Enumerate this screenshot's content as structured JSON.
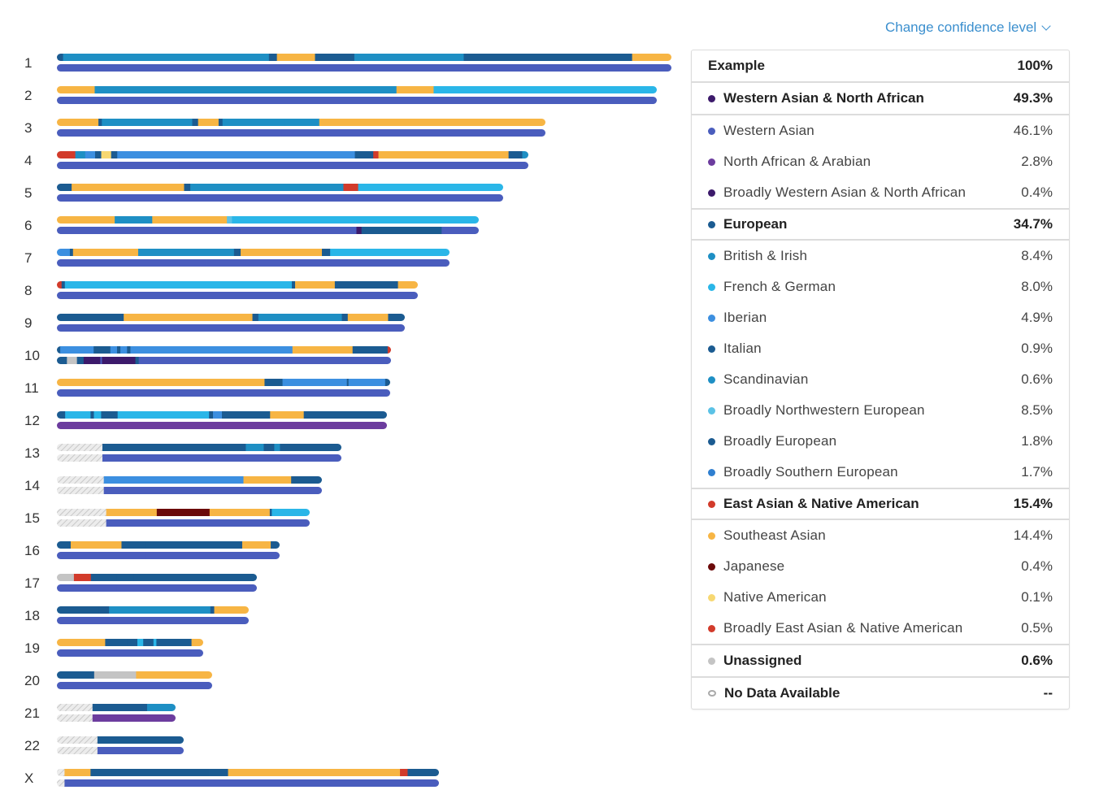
{
  "header": {
    "confidence_link": "Change confidence level"
  },
  "colors": {
    "hatch": "#dcdcdc"
  },
  "chromosomes": [
    {
      "label": "1",
      "top": [
        [
          "#1b5b91",
          0.01
        ],
        [
          "#1e8fc4",
          0.335
        ],
        [
          "#1b5b91",
          0.013
        ],
        [
          "#f7b544",
          0.062
        ],
        [
          "#1b5b91",
          0.064
        ],
        [
          "#1e8fc4",
          0.025
        ],
        [
          "#1e8fc4",
          0.153
        ],
        [
          "#1b5b91",
          0.274
        ],
        [
          "#f7b544",
          0.074
        ]
      ],
      "bottom": [
        [
          "#4a5dbd",
          0.5
        ],
        [
          "#4a5dbd",
          0.5
        ]
      ]
    },
    {
      "label": "2",
      "top": [
        [
          "#f7b544",
          0.063
        ],
        [
          "#1e8fc4",
          0.333
        ],
        [
          "#1e8fc4",
          0.17
        ],
        [
          "#f7b544",
          0.062
        ],
        [
          "#2ab6e8",
          0.372
        ]
      ],
      "bottom": [
        [
          "#4a5dbd",
          0.4
        ],
        [
          "#4a5dbd",
          0.6
        ]
      ]
    },
    {
      "label": "3",
      "top": [
        [
          "#f7b544",
          0.085
        ],
        [
          "#1b5b91",
          0.007
        ],
        [
          "#1e8fc4",
          0.185
        ],
        [
          "#1b5b91",
          0.012
        ],
        [
          "#f7b544",
          0.042
        ],
        [
          "#1b5b91",
          0.008
        ],
        [
          "#1e8fc4",
          0.128
        ],
        [
          "#1e8fc4",
          0.07
        ],
        [
          "#f7b544",
          0.463
        ]
      ],
      "bottom": [
        [
          "#4a5dbd",
          0.46
        ],
        [
          "#4a5dbd",
          0.54
        ]
      ]
    },
    {
      "label": "4",
      "top": [
        [
          "#d23b2b",
          0.039
        ],
        [
          "#1e8fc4",
          0.021
        ],
        [
          "#3c8fe0",
          0.021
        ],
        [
          "#1b5b91",
          0.013
        ],
        [
          "#f7d872",
          0.021
        ],
        [
          "#1b5b91",
          0.013
        ],
        [
          "#3c8fe0",
          0.142
        ],
        [
          "#3c8fe0",
          0.362
        ],
        [
          "#1b5b91",
          0.039
        ],
        [
          "#d23b2b",
          0.011
        ],
        [
          "#f7b544",
          0.276
        ],
        [
          "#1b5b91",
          0.029
        ],
        [
          "#1e8fc4",
          0.024
        ]
      ],
      "bottom": [
        [
          "#4a5dbd",
          0.26
        ],
        [
          "#4a5dbd",
          0.74
        ]
      ]
    },
    {
      "label": "5",
      "top": [
        [
          "#1b5b91",
          0.033
        ],
        [
          "#f7b544",
          0.252
        ],
        [
          "#1b5b91",
          0.014
        ],
        [
          "#1e8fc4",
          0.343
        ],
        [
          "#d23b2b",
          0.033
        ],
        [
          "#2ab6e8",
          0.325
        ]
      ],
      "bottom": [
        [
          "#4a5dbd",
          0.27
        ],
        [
          "#4a5dbd",
          0.73
        ]
      ]
    },
    {
      "label": "6",
      "top": [
        [
          "#f7b544",
          0.137
        ],
        [
          "#1e8fc4",
          0.089
        ],
        [
          "#f7b544",
          0.131
        ],
        [
          "#f7b544",
          0.046
        ],
        [
          "#5bc2e6",
          0.012
        ],
        [
          "#2ab6e8",
          0.585
        ]
      ],
      "bottom": [
        [
          "#4a5dbd",
          0.36
        ],
        [
          "#4a5dbd",
          0.35
        ],
        [
          "#3c1a6b",
          0.012
        ],
        [
          "#1b5b91",
          0.19
        ],
        [
          "#4a5dbd",
          0.088
        ]
      ]
    },
    {
      "label": "7",
      "top": [
        [
          "#3c8fe0",
          0.033
        ],
        [
          "#1b5b91",
          0.008
        ],
        [
          "#f7b544",
          0.166
        ],
        [
          "#1e8fc4",
          0.174
        ],
        [
          "#1e8fc4",
          0.07
        ],
        [
          "#1b5b91",
          0.017
        ],
        [
          "#f7b544",
          0.207
        ],
        [
          "#1b5b91",
          0.021
        ],
        [
          "#2ab6e8",
          0.304
        ]
      ],
      "bottom": [
        [
          "#4a5dbd",
          0.38
        ],
        [
          "#4a5dbd",
          0.62
        ]
      ]
    },
    {
      "label": "8",
      "top": [
        [
          "#d23b2b",
          0.013
        ],
        [
          "#1b5b91",
          0.009
        ],
        [
          "#2ab6e8",
          0.288
        ],
        [
          "#2ab6e8",
          0.341
        ],
        [
          "#1b5b91",
          0.009
        ],
        [
          "#f7b544",
          0.11
        ],
        [
          "#1b5b91",
          0.175
        ],
        [
          "#f7b544",
          0.055
        ]
      ],
      "bottom": [
        [
          "#4a5dbd",
          0.31
        ],
        [
          "#4a5dbd",
          0.69
        ]
      ]
    },
    {
      "label": "9",
      "top": [
        [
          "#1b5b91",
          0.192
        ],
        [
          "#f7b544",
          0.155
        ],
        [
          "#f7b544",
          0.215
        ],
        [
          "#1b5b91",
          0.017
        ],
        [
          "#1e8fc4",
          0.24
        ],
        [
          "#1b5b91",
          0.017
        ],
        [
          "#f7b544",
          0.116
        ],
        [
          "#1b5b91",
          0.048
        ]
      ],
      "bottom": [
        [
          "#4a5dbd",
          0.35
        ],
        [
          "#4a5dbd",
          0.65
        ]
      ]
    },
    {
      "label": "10",
      "top": [
        [
          "#1b5b91",
          0.01
        ],
        [
          "#3c8fe0",
          0.1
        ],
        [
          "#1b5b91",
          0.05
        ],
        [
          "#3c8fe0",
          0.02
        ],
        [
          "#1b5b91",
          0.01
        ],
        [
          "#3c8fe0",
          0.02
        ],
        [
          "#1b5b91",
          0.01
        ],
        [
          "#3c8fe0",
          0.08
        ],
        [
          "#3c8fe0",
          0.405
        ],
        [
          "#f7b544",
          0.18
        ],
        [
          "#1b5b91",
          0.105
        ],
        [
          "#d23b2b",
          0.01
        ]
      ],
      "bottom": [
        [
          "#1b5b91",
          0.03
        ],
        [
          "#c4c4c4",
          0.03
        ],
        [
          "#1b5b91",
          0.02
        ],
        [
          "#3c1a6b",
          0.05
        ],
        [
          "#4a5dbd",
          0.005
        ],
        [
          "#3c1a6b",
          0.1
        ],
        [
          "#1b5b91",
          0.01
        ],
        [
          "#4a5dbd",
          0.06
        ],
        [
          "#4a5dbd",
          0.695
        ]
      ]
    },
    {
      "label": "11",
      "top": [
        [
          "#f7b544",
          0.398
        ],
        [
          "#f7b544",
          0.225
        ],
        [
          "#1b5b91",
          0.054
        ],
        [
          "#3c8fe0",
          0.193
        ],
        [
          "#1b5b91",
          0.005
        ],
        [
          "#3c8fe0",
          0.11
        ],
        [
          "#1b5b91",
          0.024
        ]
      ],
      "bottom": [
        [
          "#4a5dbd",
          0.4
        ],
        [
          "#4a5dbd",
          0.6
        ]
      ]
    },
    {
      "label": "12",
      "top": [
        [
          "#1b5b91",
          0.025
        ],
        [
          "#2ab6e8",
          0.077
        ],
        [
          "#1b5b91",
          0.01
        ],
        [
          "#2ab6e8",
          0.022
        ],
        [
          "#1b5b91",
          0.05
        ],
        [
          "#2ab6e8",
          0.082
        ],
        [
          "#2ab6e8",
          0.195
        ],
        [
          "#1b5b91",
          0.012
        ],
        [
          "#3c8fe0",
          0.027
        ],
        [
          "#1b5b91",
          0.146
        ],
        [
          "#f7b544",
          0.102
        ],
        [
          "#1b5b91",
          0.252
        ]
      ],
      "bottom": [
        [
          "#6c3c9e",
          0.27
        ],
        [
          "#6c3c9e",
          0.73
        ]
      ]
    },
    {
      "label": "13",
      "top": [
        [
          "hatch",
          0.16
        ],
        [
          "#1b5b91",
          0.504
        ],
        [
          "#1e8fc4",
          0.063
        ],
        [
          "#1b5b91",
          0.037
        ],
        [
          "#1e8fc4",
          0.02
        ],
        [
          "#1b5b91",
          0.216
        ]
      ],
      "bottom": [
        [
          "hatch",
          0.16
        ],
        [
          "#4a5dbd",
          0.84
        ]
      ]
    },
    {
      "label": "14",
      "top": [
        [
          "hatch",
          0.177
        ],
        [
          "#3c8fe0",
          0.527
        ],
        [
          "#f7b544",
          0.18
        ],
        [
          "#1b5b91",
          0.116
        ]
      ],
      "bottom": [
        [
          "hatch",
          0.177
        ],
        [
          "#4a5dbd",
          0.823
        ]
      ]
    },
    {
      "label": "15",
      "top": [
        [
          "hatch",
          0.195
        ],
        [
          "#f7b544",
          0.2
        ],
        [
          "#6b0a0a",
          0.209
        ],
        [
          "#f7b544",
          0.238
        ],
        [
          "#1b5b91",
          0.008
        ],
        [
          "#2ab6e8",
          0.15
        ]
      ],
      "bottom": [
        [
          "hatch",
          0.195
        ],
        [
          "#4a5dbd",
          0.805
        ]
      ]
    },
    {
      "label": "16",
      "top": [
        [
          "#1b5b91",
          0.062
        ],
        [
          "#f7b544",
          0.228
        ],
        [
          "#1b5b91",
          0.11
        ],
        [
          "#1b5b91",
          0.432
        ],
        [
          "#f7b544",
          0.128
        ],
        [
          "#1b5b91",
          0.04
        ]
      ],
      "bottom": [
        [
          "#4a5dbd",
          0.4
        ],
        [
          "#4a5dbd",
          0.6
        ]
      ]
    },
    {
      "label": "17",
      "top": [
        [
          "#c4c4c4",
          0.085
        ],
        [
          "#d23b2b",
          0.085
        ],
        [
          "#1b5b91",
          0.01
        ],
        [
          "#1b5b91",
          0.12
        ],
        [
          "#1b5b91",
          0.085
        ],
        [
          "#1b5b91",
          0.615
        ]
      ],
      "bottom": [
        [
          "#4a5dbd",
          0.3
        ],
        [
          "#4a5dbd",
          0.7
        ]
      ]
    },
    {
      "label": "18",
      "top": [
        [
          "#1b5b91",
          0.217
        ],
        [
          "#1b5b91",
          0.055
        ],
        [
          "#1e8fc4",
          0.528
        ],
        [
          "#1b5b91",
          0.02
        ],
        [
          "#f7b544",
          0.18
        ]
      ],
      "bottom": [
        [
          "#4a5dbd",
          0.22
        ],
        [
          "#4a5dbd",
          0.78
        ]
      ]
    },
    {
      "label": "19",
      "top": [
        [
          "#f7b544",
          0.33
        ],
        [
          "#1b5b91",
          0.15
        ],
        [
          "#1b5b91",
          0.07
        ],
        [
          "#2ab6e8",
          0.04
        ],
        [
          "#1b5b91",
          0.07
        ],
        [
          "#2ab6e8",
          0.02
        ],
        [
          "#1b5b91",
          0.24
        ],
        [
          "#f7b544",
          0.08
        ]
      ],
      "bottom": [
        [
          "#4a5dbd",
          0.45
        ],
        [
          "#4a5dbd",
          0.55
        ]
      ]
    },
    {
      "label": "20",
      "top": [
        [
          "#1b5b91",
          0.24
        ],
        [
          "#c4c4c4",
          0.2
        ],
        [
          "#c4c4c4",
          0.07
        ],
        [
          "#f7b544",
          0.49
        ]
      ],
      "bottom": [
        [
          "#4a5dbd",
          0.5
        ],
        [
          "#4a5dbd",
          0.5
        ]
      ]
    },
    {
      "label": "21",
      "top": [
        [
          "hatch",
          0.3
        ],
        [
          "#1b5b91",
          0.46
        ],
        [
          "#1e8fc4",
          0.24
        ]
      ],
      "bottom": [
        [
          "hatch",
          0.3
        ],
        [
          "#6c3c9e",
          0.7
        ]
      ]
    },
    {
      "label": "22",
      "top": [
        [
          "hatch",
          0.32
        ],
        [
          "#1b5b91",
          0.68
        ]
      ],
      "bottom": [
        [
          "hatch",
          0.32
        ],
        [
          "#4a5dbd",
          0.68
        ]
      ]
    },
    {
      "label": "X",
      "top": [
        [
          "hatch",
          0.02
        ],
        [
          "#f7b544",
          0.068
        ],
        [
          "#1b5b91",
          0.31
        ],
        [
          "#1b5b91",
          0.05
        ],
        [
          "#f7b544",
          0.45
        ],
        [
          "#d23b2b",
          0.02
        ],
        [
          "#1b5b91",
          0.082
        ]
      ],
      "bottom": [
        [
          "hatch",
          0.02
        ],
        [
          "#4a5dbd",
          0.38
        ],
        [
          "#4a5dbd",
          0.6
        ]
      ]
    }
  ],
  "table": {
    "header": {
      "label": "Example",
      "value": "100%"
    },
    "groups": [
      {
        "label": "Western Asian & North African",
        "value": "49.3%",
        "color": "#3c1a6b",
        "items": [
          {
            "label": "Western Asian",
            "value": "46.1%",
            "color": "#4a5dbd"
          },
          {
            "label": "North African & Arabian",
            "value": "2.8%",
            "color": "#6c3c9e"
          },
          {
            "label": "Broadly Western Asian & North African",
            "value": "0.4%",
            "color": "#3c1a6b"
          }
        ]
      },
      {
        "label": "European",
        "value": "34.7%",
        "color": "#1b5b91",
        "items": [
          {
            "label": "British & Irish",
            "value": "8.4%",
            "color": "#1e8fc4"
          },
          {
            "label": "French & German",
            "value": "8.0%",
            "color": "#2ab6e8"
          },
          {
            "label": "Iberian",
            "value": "4.9%",
            "color": "#3c8fe0"
          },
          {
            "label": "Italian",
            "value": "0.9%",
            "color": "#1b5b91"
          },
          {
            "label": "Scandinavian",
            "value": "0.6%",
            "color": "#1e8fc4"
          },
          {
            "label": "Broadly Northwestern European",
            "value": "8.5%",
            "color": "#5bc2e6"
          },
          {
            "label": "Broadly European",
            "value": "1.8%",
            "color": "#1b5b91"
          },
          {
            "label": "Broadly Southern European",
            "value": "1.7%",
            "color": "#2f7fd0"
          }
        ]
      },
      {
        "label": "East Asian & Native American",
        "value": "15.4%",
        "color": "#d23b2b",
        "items": [
          {
            "label": "Southeast Asian",
            "value": "14.4%",
            "color": "#f7b544"
          },
          {
            "label": "Japanese",
            "value": "0.4%",
            "color": "#6b0a0a"
          },
          {
            "label": "Native American",
            "value": "0.1%",
            "color": "#f7d872"
          },
          {
            "label": "Broadly East Asian & Native American",
            "value": "0.5%",
            "color": "#d23b2b"
          }
        ]
      },
      {
        "label": "Unassigned",
        "value": "0.6%",
        "color": "#c4c4c4",
        "items": []
      },
      {
        "label": "No Data Available",
        "value": "--",
        "color": "hollow",
        "items": []
      }
    ]
  }
}
